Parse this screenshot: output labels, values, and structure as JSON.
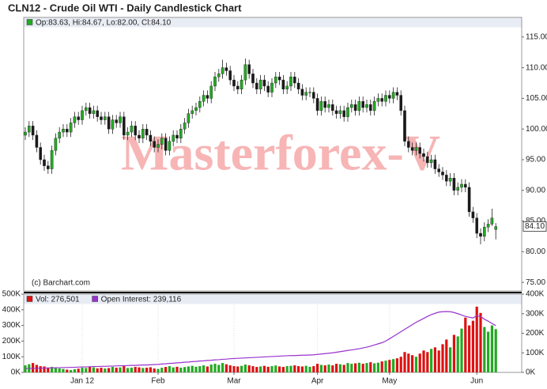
{
  "chart_data": [
    {
      "type": "candlestick",
      "title": "CLN12 - Crude Oil WTI - Daily Candlestick Chart",
      "legend": "Op:83.63, Hi:84.67, Lo:82.00, Cl:84.10",
      "watermark": "Masterforex-V",
      "source": "(c) Barchart.com",
      "up_color": "#22aa22",
      "down_color": "#1a1a1a",
      "legend_color": "#22aa22",
      "open": [
        99.0,
        99.5,
        100.5,
        99.0,
        97.0,
        95.0,
        94.0,
        93.5,
        96.5,
        98.5,
        99.5,
        100.0,
        99.5,
        101.0,
        102.0,
        101.5,
        103.0,
        103.5,
        102.5,
        103.0,
        102.0,
        101.5,
        102.0,
        100.0,
        101.5,
        101.0,
        102.0,
        99.0,
        99.5,
        100.5,
        99.0,
        98.5,
        100.0,
        99.0,
        98.0,
        97.0,
        97.5,
        98.5,
        96.5,
        98.0,
        99.0,
        98.5,
        100.0,
        101.0,
        102.5,
        103.0,
        103.5,
        104.5,
        105.5,
        105.0,
        107.0,
        108.5,
        109.0,
        110.0,
        109.5,
        108.0,
        107.0,
        106.5,
        108.0,
        110.5,
        109.0,
        107.5,
        106.5,
        108.0,
        107.0,
        106.0,
        107.5,
        108.5,
        108.0,
        106.5,
        107.0,
        108.5,
        107.5,
        106.5,
        105.5,
        106.0,
        106.0,
        105.0,
        103.0,
        104.5,
        103.5,
        104.0,
        103.0,
        102.5,
        103.0,
        102.0,
        103.5,
        104.0,
        103.0,
        104.5,
        103.5,
        104.0,
        103.0,
        104.5,
        105.0,
        104.5,
        105.5,
        105.0,
        106.0,
        105.5,
        103.0,
        98.0,
        97.0,
        96.5,
        97.0,
        96.0,
        95.5,
        94.5,
        95.0,
        93.5,
        93.0,
        92.5,
        91.5,
        92.0,
        90.0,
        90.5,
        91.0,
        90.5,
        86.5,
        85.5,
        83.0,
        82.5,
        84.0,
        84.5,
        83.63
      ],
      "high": [
        100.3,
        101.3,
        101.3,
        99.8,
        97.8,
        95.8,
        94.8,
        97.3,
        99.3,
        100.3,
        100.8,
        100.8,
        101.8,
        102.8,
        102.8,
        103.8,
        104.3,
        104.3,
        103.8,
        103.8,
        102.8,
        102.8,
        102.8,
        102.3,
        102.3,
        102.8,
        102.8,
        100.3,
        101.3,
        101.3,
        99.8,
        100.8,
        100.8,
        99.8,
        98.8,
        98.3,
        99.3,
        99.3,
        98.8,
        99.8,
        99.8,
        100.8,
        101.8,
        103.3,
        103.8,
        104.3,
        105.3,
        106.3,
        106.3,
        107.8,
        109.3,
        109.8,
        111.3,
        110.8,
        110.3,
        108.8,
        107.8,
        108.8,
        111.5,
        111.3,
        109.8,
        108.3,
        108.8,
        108.8,
        107.8,
        108.3,
        109.3,
        109.3,
        108.8,
        107.8,
        109.3,
        109.3,
        108.3,
        107.3,
        106.8,
        106.8,
        106.8,
        105.8,
        105.3,
        105.3,
        104.8,
        104.8,
        103.8,
        103.8,
        103.8,
        104.3,
        104.8,
        104.8,
        105.3,
        105.3,
        104.8,
        104.8,
        105.3,
        105.8,
        105.8,
        106.3,
        106.3,
        106.8,
        106.8,
        106.3,
        103.8,
        98.8,
        97.8,
        97.8,
        97.8,
        96.8,
        96.3,
        95.8,
        95.8,
        94.3,
        93.8,
        93.3,
        92.8,
        92.8,
        91.3,
        91.8,
        91.8,
        91.3,
        87.3,
        86.3,
        83.8,
        84.8,
        85.3,
        87.0,
        84.67
      ],
      "low": [
        98.2,
        98.7,
        98.2,
        96.2,
        94.2,
        93.2,
        92.7,
        92.7,
        95.7,
        97.7,
        98.7,
        98.7,
        98.7,
        100.2,
        100.7,
        100.7,
        102.2,
        101.7,
        101.7,
        101.2,
        100.7,
        100.7,
        99.2,
        99.2,
        100.2,
        100.2,
        98.2,
        98.2,
        98.7,
        98.2,
        97.7,
        97.7,
        98.2,
        97.2,
        96.2,
        96.2,
        96.7,
        95.7,
        95.7,
        97.2,
        97.7,
        97.7,
        99.2,
        100.2,
        101.7,
        102.2,
        102.7,
        103.7,
        104.2,
        104.2,
        106.2,
        107.7,
        108.2,
        108.7,
        107.2,
        106.2,
        105.7,
        105.7,
        107.2,
        108.2,
        106.7,
        105.7,
        105.7,
        106.2,
        105.2,
        105.2,
        106.7,
        107.2,
        105.7,
        105.7,
        106.2,
        106.7,
        105.7,
        104.7,
        104.7,
        105.2,
        104.2,
        102.2,
        102.2,
        102.7,
        102.7,
        102.2,
        101.7,
        101.7,
        101.2,
        101.2,
        102.7,
        102.2,
        102.2,
        102.7,
        102.7,
        102.2,
        102.2,
        103.7,
        103.7,
        103.7,
        104.2,
        104.2,
        104.7,
        102.2,
        97.2,
        96.2,
        95.7,
        95.7,
        95.2,
        94.7,
        93.7,
        93.7,
        92.7,
        92.2,
        91.7,
        90.7,
        90.7,
        89.2,
        89.2,
        89.7,
        89.7,
        85.7,
        84.7,
        82.2,
        81.2,
        81.7,
        83.2,
        84.2,
        82.0
      ],
      "close": [
        99.5,
        100.5,
        99.0,
        97.0,
        95.0,
        94.0,
        93.5,
        96.5,
        98.5,
        99.5,
        100.0,
        99.5,
        101.0,
        102.0,
        101.5,
        103.0,
        103.5,
        102.5,
        103.0,
        102.0,
        101.5,
        102.0,
        100.0,
        101.5,
        101.0,
        102.0,
        99.0,
        99.5,
        100.5,
        99.0,
        98.5,
        100.0,
        99.0,
        98.0,
        97.0,
        97.5,
        98.5,
        96.5,
        98.0,
        99.0,
        98.5,
        100.0,
        101.0,
        102.5,
        103.0,
        103.5,
        104.5,
        105.5,
        105.0,
        107.0,
        108.5,
        109.0,
        110.0,
        109.5,
        108.0,
        107.0,
        106.5,
        108.0,
        110.5,
        109.0,
        107.5,
        106.5,
        108.0,
        107.0,
        106.0,
        107.5,
        108.5,
        108.0,
        106.5,
        107.0,
        108.5,
        107.5,
        106.5,
        105.5,
        106.0,
        106.0,
        105.0,
        103.0,
        104.5,
        103.5,
        104.0,
        103.0,
        102.5,
        103.0,
        102.0,
        103.5,
        104.0,
        103.0,
        104.5,
        103.5,
        104.0,
        103.0,
        104.5,
        105.0,
        104.5,
        105.5,
        105.0,
        106.0,
        105.5,
        103.0,
        98.0,
        97.0,
        96.5,
        97.0,
        96.0,
        95.5,
        94.5,
        95.0,
        93.5,
        93.0,
        92.5,
        91.5,
        92.0,
        90.0,
        90.5,
        91.0,
        90.5,
        86.5,
        85.5,
        83.0,
        82.5,
        84.0,
        84.5,
        85.5,
        84.1
      ],
      "ylim": [
        73.6,
        118.2
      ],
      "yticks": [
        {
          "value": 75,
          "label": "75.00"
        },
        {
          "value": 80,
          "label": "80.00"
        },
        {
          "value": 85,
          "label": "85.00"
        },
        {
          "value": 90,
          "label": "90.00"
        },
        {
          "value": 95,
          "label": "95.00"
        },
        {
          "value": 100,
          "label": "100.00"
        },
        {
          "value": 105,
          "label": "105.00"
        },
        {
          "value": 110,
          "label": "110.00"
        },
        {
          "value": 115,
          "label": "115.00"
        }
      ],
      "last_price": {
        "value": 84.1,
        "label": "84.10"
      }
    },
    {
      "type": "bar",
      "categories": [
        null,
        null,
        null,
        null,
        null,
        null,
        null,
        null,
        null,
        null,
        null,
        null,
        null,
        null,
        null,
        "Jan 12",
        null,
        null,
        null,
        null,
        null,
        null,
        null,
        null,
        null,
        null,
        null,
        null,
        null,
        null,
        null,
        null,
        null,
        null,
        null,
        "Feb",
        null,
        null,
        null,
        null,
        null,
        null,
        null,
        null,
        null,
        null,
        null,
        null,
        null,
        null,
        null,
        null,
        null,
        null,
        null,
        "Mar",
        null,
        null,
        null,
        null,
        null,
        null,
        null,
        null,
        null,
        null,
        null,
        null,
        null,
        null,
        null,
        null,
        null,
        null,
        null,
        null,
        null,
        "Apr",
        null,
        null,
        null,
        null,
        null,
        null,
        null,
        null,
        null,
        null,
        null,
        null,
        null,
        null,
        null,
        null,
        null,
        null,
        "May",
        null,
        null,
        null,
        null,
        null,
        null,
        null,
        null,
        null,
        null,
        null,
        null,
        null,
        null,
        null,
        null,
        null,
        null,
        null,
        null,
        null,
        null,
        "Jun",
        null,
        null,
        null,
        null,
        null
      ],
      "series": [
        {
          "name": "Vol: 276,501",
          "color": "#dd1111",
          "up_color": "#22aa22",
          "values": [
            45000,
            52000,
            60000,
            48000,
            40000,
            38000,
            30000,
            35000,
            28000,
            25000,
            22000,
            18000,
            15000,
            20000,
            24000,
            30000,
            28000,
            35000,
            32000,
            26000,
            30000,
            25000,
            28000,
            35000,
            30000,
            32000,
            40000,
            28000,
            30000,
            35000,
            32000,
            28000,
            30000,
            33000,
            25000,
            22000,
            30000,
            35000,
            40000,
            32000,
            36000,
            30000,
            34000,
            38000,
            42000,
            36000,
            40000,
            45000,
            38000,
            50000,
            55000,
            48000,
            60000,
            52000,
            45000,
            40000,
            38000,
            42000,
            50000,
            45000,
            40000,
            35000,
            38000,
            42000,
            36000,
            40000,
            44000,
            38000,
            35000,
            40000,
            42000,
            45000,
            40000,
            38000,
            42000,
            36000,
            40000,
            55000,
            48000,
            45000,
            50000,
            45000,
            55000,
            52000,
            48000,
            60000,
            55000,
            58000,
            62000,
            55000,
            60000,
            65000,
            58000,
            62000,
            70000,
            75000,
            80000,
            85000,
            90000,
            100000,
            130000,
            120000,
            110000,
            100000,
            120000,
            140000,
            130000,
            150000,
            160000,
            140000,
            180000,
            210000,
            160000,
            240000,
            230000,
            280000,
            350000,
            300000,
            330000,
            420000,
            380000,
            290000,
            260000,
            300000,
            276501
          ]
        },
        {
          "name": "Open Interest: 239,116",
          "color": "#9933cc",
          "type": "line",
          "axis": "y2",
          "values": [
            20000,
            20000,
            21000,
            21000,
            22000,
            22000,
            23000,
            23000,
            24000,
            24000,
            25000,
            25000,
            26000,
            26000,
            27000,
            28000,
            28000,
            29000,
            30000,
            30000,
            31000,
            31000,
            32000,
            32000,
            33000,
            34000,
            34000,
            35000,
            36000,
            36000,
            37000,
            38000,
            38000,
            39000,
            40000,
            41000,
            43000,
            44000,
            46000,
            47000,
            49000,
            50000,
            52000,
            53000,
            55000,
            56000,
            58000,
            59000,
            61000,
            62000,
            64000,
            65000,
            67000,
            68000,
            70000,
            71000,
            72000,
            73000,
            74000,
            75000,
            76000,
            77000,
            78000,
            79000,
            80000,
            81000,
            82000,
            83000,
            84000,
            85000,
            86000,
            86000,
            87000,
            88000,
            88000,
            89000,
            90000,
            92000,
            94000,
            96000,
            98000,
            100000,
            103000,
            106000,
            109000,
            112000,
            115000,
            118000,
            121000,
            125000,
            129000,
            134000,
            140000,
            146000,
            152000,
            160000,
            172000,
            184000,
            196000,
            208000,
            220000,
            232000,
            244000,
            256000,
            266000,
            276000,
            286000,
            295000,
            302000,
            308000,
            310000,
            311000,
            310000,
            306000,
            300000,
            293000,
            286000,
            282000,
            278000,
            290000,
            285000,
            272000,
            262000,
            250000,
            239116
          ]
        }
      ],
      "ylim": [
        0,
        500000
      ],
      "yticks": [
        {
          "value": 0,
          "label": "0K"
        },
        {
          "value": 100000,
          "label": "100K"
        },
        {
          "value": 200000,
          "label": "200K"
        },
        {
          "value": 300000,
          "label": "300K"
        },
        {
          "value": 400000,
          "label": "400K"
        },
        {
          "value": 500000,
          "label": "500K"
        }
      ],
      "y2lim": [
        0,
        400000
      ],
      "y2ticks": [
        {
          "value": 0,
          "label": "0K"
        },
        {
          "value": 100000,
          "label": "100K"
        },
        {
          "value": 200000,
          "label": "200K"
        },
        {
          "value": 300000,
          "label": "300K"
        },
        {
          "value": 400000,
          "label": "400K"
        }
      ]
    }
  ]
}
